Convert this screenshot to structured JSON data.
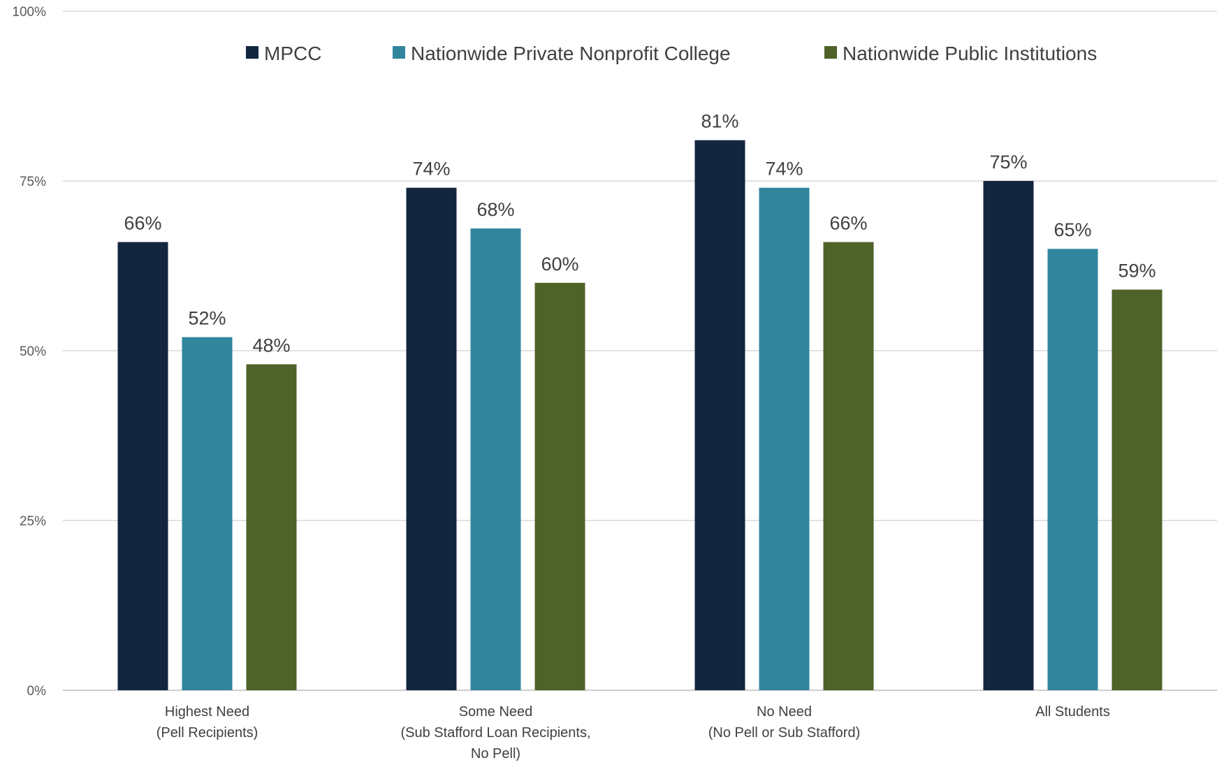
{
  "chart_data": {
    "type": "bar",
    "title": "",
    "xlabel": "",
    "ylabel": "",
    "ylim": [
      0,
      100
    ],
    "yticks": [
      "0%",
      "25%",
      "50%",
      "75%",
      "100%"
    ],
    "grid": true,
    "legend_position": "top",
    "categories": [
      [
        "Highest Need",
        "(Pell Recipients)"
      ],
      [
        "Some Need",
        "(Sub Stafford Loan Recipients,",
        "No Pell)"
      ],
      [
        "No Need",
        "(No Pell or Sub Stafford)"
      ],
      [
        "All Students"
      ]
    ],
    "series": [
      {
        "name": "MPCC",
        "color": "#13253f",
        "values": [
          66,
          74,
          81,
          75
        ],
        "labels": [
          "66%",
          "74%",
          "81%",
          "75%"
        ]
      },
      {
        "name": "Nationwide Private Nonprofit College",
        "color": "#31869e",
        "values": [
          52,
          68,
          74,
          65
        ],
        "labels": [
          "52%",
          "68%",
          "74%",
          "65%"
        ]
      },
      {
        "name": "Nationwide Public Institutions",
        "color": "#4f6228",
        "values": [
          48,
          60,
          66,
          59
        ],
        "labels": [
          "48%",
          "60%",
          "66%",
          "59%"
        ]
      }
    ]
  }
}
